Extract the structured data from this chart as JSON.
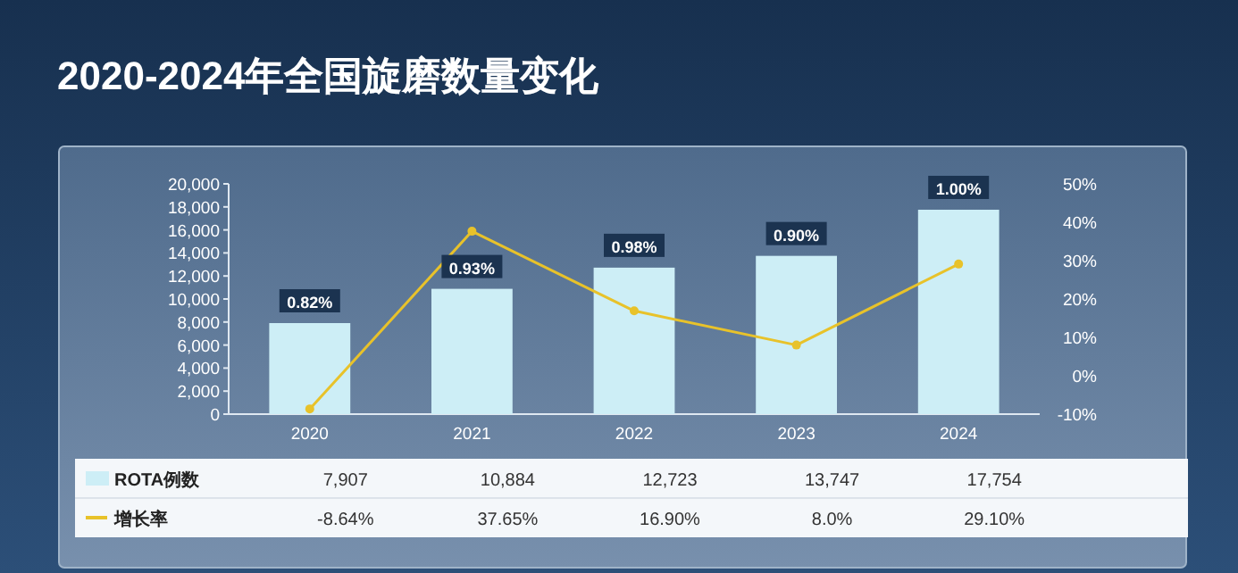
{
  "chart_data": {
    "type": "bar",
    "title": "2020-2024年全国旋磨数量变化",
    "categories": [
      "2020",
      "2021",
      "2022",
      "2023",
      "2024"
    ],
    "series": [
      {
        "name": "ROTA例数",
        "color": "#cdeef6",
        "values": [
          7907,
          10884,
          12723,
          13747,
          17754
        ],
        "value_labels": [
          "7,907",
          "10,884",
          "12,723",
          "13,747",
          "17,754"
        ]
      },
      {
        "name": "增长率",
        "type": "line",
        "axis": "y2",
        "color": "#e8c22a",
        "marker": "circle",
        "values": [
          -8.64,
          37.65,
          16.9,
          8.0,
          29.1
        ],
        "value_labels": [
          "-8.64%",
          "37.65%",
          "16.90%",
          "8.0%",
          "29.10%"
        ]
      }
    ],
    "ylim": [
      0,
      20000
    ],
    "yticks": [
      0,
      {
        "value": 2000,
        "label": "2,000"
      },
      {
        "value": 4000,
        "label": "4,000"
      },
      {
        "value": 6000,
        "label": "6,000"
      },
      {
        "value": 8000,
        "label": "8,000"
      },
      {
        "value": 10000,
        "label": "10,000"
      },
      {
        "value": 12000,
        "label": "12,000"
      },
      {
        "value": 14000,
        "label": "14,000"
      },
      {
        "value": 16000,
        "label": "16,000"
      },
      {
        "value": 18000,
        "label": "18,000"
      },
      {
        "value": 20000,
        "label": "20,000"
      }
    ],
    "y2lim": [
      -10,
      50
    ],
    "y2ticks": [
      {
        "value": -10,
        "label": "-10%"
      },
      {
        "value": 0,
        "label": "0%"
      },
      {
        "value": 10,
        "label": "10%"
      },
      {
        "value": 20,
        "label": "20%"
      },
      {
        "value": 30,
        "label": "30%"
      },
      {
        "value": 40,
        "label": "40%"
      },
      {
        "value": 50,
        "label": "50%"
      }
    ],
    "annotations": [
      {
        "text": "0.82%",
        "x": "2020",
        "y": 7907
      },
      {
        "text": "0.93%",
        "x": "2021",
        "y": 10884
      },
      {
        "text": "0.98%",
        "x": "2022",
        "y": 12723
      },
      {
        "text": "0.90%",
        "x": "2023",
        "y": 13747
      },
      {
        "text": "1.00%",
        "x": "2024",
        "y": 17754
      }
    ],
    "legend": "bottom",
    "grid": false
  }
}
